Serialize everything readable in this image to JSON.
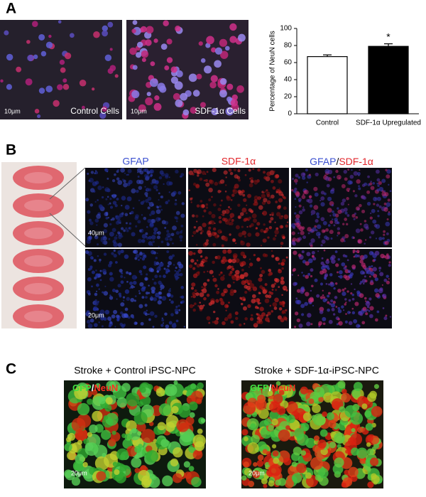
{
  "panel_a": {
    "label": "A",
    "images": [
      {
        "caption": "Control Cells",
        "scale": "10μm"
      },
      {
        "caption": "SDF-1α Cells",
        "scale": "10μm"
      }
    ]
  },
  "chart_data": {
    "type": "bar",
    "categories": [
      "Control",
      "SDF-1α Upregulated"
    ],
    "values": [
      67,
      79
    ],
    "errors": [
      2,
      3
    ],
    "colors": [
      "#ffffff",
      "#000000"
    ],
    "ylabel": "Percentage of NeuN cells",
    "ylim": [
      0,
      100
    ],
    "yticks": [
      0,
      20,
      40,
      60,
      80,
      100
    ],
    "annotation": "*"
  },
  "panel_b": {
    "label": "B",
    "headers": {
      "gfap": "GFAP",
      "sdf": "SDF-1α",
      "merge_left": "GFAP",
      "merge_sep": "/",
      "merge_right": "SDF-1α"
    },
    "scales": [
      "40μm",
      "20μm"
    ]
  },
  "panel_c": {
    "label": "C",
    "panels": [
      {
        "title": "Stroke + Control iPSC-NPC",
        "stain_left": "GFP",
        "stain_sep": "/",
        "stain_right": "NeuN",
        "scale": "20μm"
      },
      {
        "title": "Stroke + SDF-1α-iPSC-NPC",
        "stain_left": "GFP",
        "stain_sep": "/",
        "stain_right": "NeuN",
        "scale": "20μm"
      }
    ]
  }
}
